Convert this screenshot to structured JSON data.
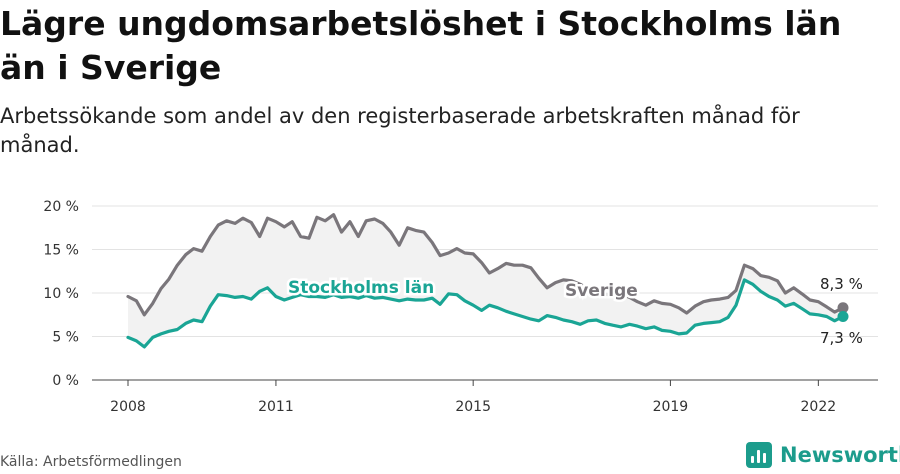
{
  "title": "Lägre ungdomsarbetslöshet i Stockholms län än i Sverige",
  "subtitle": "Arbetssökande som andel av den registerbaserade arbetskraften månad för månad.",
  "source": "Källa: Arbetsförmedlingen",
  "brand": "Newsworthy",
  "colors": {
    "sverige": "#7a767b",
    "stockholm": "#1aa595",
    "band": "#f2f2f2",
    "grid": "#e3e3e3",
    "brand": "#1c9c8c"
  },
  "chart_data": {
    "type": "line",
    "title": "Lägre ungdomsarbetslöshet i Stockholms län än i Sverige",
    "xlabel": "",
    "ylabel": "",
    "xlim": [
      2008,
      2022.5
    ],
    "ylim": [
      0,
      20
    ],
    "y_ticks": [
      0,
      5,
      10,
      15,
      20
    ],
    "y_tick_labels": [
      "0 %",
      "5 %",
      "10 %",
      "15 %",
      "20 %"
    ],
    "x_ticks": [
      2008,
      2011,
      2015,
      2019,
      2022
    ],
    "x_tick_labels": [
      "2008",
      "2011",
      "2015",
      "2019",
      "2022"
    ],
    "series": [
      {
        "name": "Sverige",
        "end_label": "8,3 %",
        "points": [
          [
            2008,
            9.6
          ],
          [
            2008.17,
            9.1
          ],
          [
            2008.33,
            7.5
          ],
          [
            2008.5,
            8.8
          ],
          [
            2008.67,
            10.5
          ],
          [
            2008.83,
            11.6
          ],
          [
            2009,
            13.2
          ],
          [
            2009.17,
            14.4
          ],
          [
            2009.33,
            15.1
          ],
          [
            2009.5,
            14.8
          ],
          [
            2009.67,
            16.5
          ],
          [
            2009.83,
            17.8
          ],
          [
            2010,
            18.3
          ],
          [
            2010.17,
            18.0
          ],
          [
            2010.33,
            18.6
          ],
          [
            2010.5,
            18.1
          ],
          [
            2010.67,
            16.5
          ],
          [
            2010.83,
            18.6
          ],
          [
            2011,
            18.2
          ],
          [
            2011.17,
            17.6
          ],
          [
            2011.33,
            18.2
          ],
          [
            2011.5,
            16.5
          ],
          [
            2011.67,
            16.3
          ],
          [
            2011.83,
            18.7
          ],
          [
            2012,
            18.3
          ],
          [
            2012.17,
            19.0
          ],
          [
            2012.33,
            17.0
          ],
          [
            2012.5,
            18.2
          ],
          [
            2012.67,
            16.5
          ],
          [
            2012.83,
            18.3
          ],
          [
            2013,
            18.5
          ],
          [
            2013.17,
            18.0
          ],
          [
            2013.33,
            17.0
          ],
          [
            2013.5,
            15.5
          ],
          [
            2013.67,
            17.5
          ],
          [
            2013.83,
            17.2
          ],
          [
            2014,
            17.0
          ],
          [
            2014.17,
            15.8
          ],
          [
            2014.33,
            14.3
          ],
          [
            2014.5,
            14.6
          ],
          [
            2014.67,
            15.1
          ],
          [
            2014.83,
            14.6
          ],
          [
            2015,
            14.5
          ],
          [
            2015.17,
            13.5
          ],
          [
            2015.33,
            12.3
          ],
          [
            2015.5,
            12.8
          ],
          [
            2015.67,
            13.4
          ],
          [
            2015.83,
            13.2
          ],
          [
            2016,
            13.2
          ],
          [
            2016.17,
            12.9
          ],
          [
            2016.33,
            11.7
          ],
          [
            2016.5,
            10.6
          ],
          [
            2016.67,
            11.2
          ],
          [
            2016.83,
            11.5
          ],
          [
            2017,
            11.4
          ],
          [
            2017.17,
            11.0
          ],
          [
            2017.33,
            10.5
          ],
          [
            2017.5,
            9.8
          ],
          [
            2017.67,
            9.9
          ],
          [
            2017.83,
            9.7
          ],
          [
            2018,
            9.9
          ],
          [
            2018.17,
            9.5
          ],
          [
            2018.33,
            9.0
          ],
          [
            2018.5,
            8.6
          ],
          [
            2018.67,
            9.1
          ],
          [
            2018.83,
            8.8
          ],
          [
            2019,
            8.7
          ],
          [
            2019.17,
            8.3
          ],
          [
            2019.33,
            7.7
          ],
          [
            2019.5,
            8.5
          ],
          [
            2019.67,
            9.0
          ],
          [
            2019.83,
            9.2
          ],
          [
            2020,
            9.3
          ],
          [
            2020.17,
            9.5
          ],
          [
            2020.33,
            10.3
          ],
          [
            2020.5,
            13.2
          ],
          [
            2020.67,
            12.8
          ],
          [
            2020.83,
            12.0
          ],
          [
            2021,
            11.8
          ],
          [
            2021.17,
            11.4
          ],
          [
            2021.33,
            10.0
          ],
          [
            2021.5,
            10.6
          ],
          [
            2021.67,
            9.9
          ],
          [
            2021.83,
            9.2
          ],
          [
            2022,
            9.0
          ],
          [
            2022.17,
            8.4
          ],
          [
            2022.33,
            7.8
          ],
          [
            2022.5,
            8.3
          ]
        ]
      },
      {
        "name": "Stockholms län",
        "end_label": "7,3 %",
        "points": [
          [
            2008,
            4.9
          ],
          [
            2008.17,
            4.5
          ],
          [
            2008.33,
            3.8
          ],
          [
            2008.5,
            4.9
          ],
          [
            2008.67,
            5.3
          ],
          [
            2008.83,
            5.6
          ],
          [
            2009,
            5.8
          ],
          [
            2009.17,
            6.5
          ],
          [
            2009.33,
            6.9
          ],
          [
            2009.5,
            6.7
          ],
          [
            2009.67,
            8.5
          ],
          [
            2009.83,
            9.8
          ],
          [
            2010,
            9.7
          ],
          [
            2010.17,
            9.5
          ],
          [
            2010.33,
            9.6
          ],
          [
            2010.5,
            9.3
          ],
          [
            2010.67,
            10.2
          ],
          [
            2010.83,
            10.6
          ],
          [
            2011,
            9.6
          ],
          [
            2011.17,
            9.2
          ],
          [
            2011.33,
            9.5
          ],
          [
            2011.5,
            9.8
          ],
          [
            2011.67,
            9.6
          ],
          [
            2011.83,
            9.6
          ],
          [
            2012,
            9.5
          ],
          [
            2012.17,
            9.8
          ],
          [
            2012.33,
            9.5
          ],
          [
            2012.5,
            9.6
          ],
          [
            2012.67,
            9.4
          ],
          [
            2012.83,
            9.7
          ],
          [
            2013,
            9.4
          ],
          [
            2013.17,
            9.5
          ],
          [
            2013.33,
            9.3
          ],
          [
            2013.5,
            9.1
          ],
          [
            2013.67,
            9.3
          ],
          [
            2013.83,
            9.2
          ],
          [
            2014,
            9.2
          ],
          [
            2014.17,
            9.4
          ],
          [
            2014.33,
            8.7
          ],
          [
            2014.5,
            9.9
          ],
          [
            2014.67,
            9.8
          ],
          [
            2014.83,
            9.1
          ],
          [
            2015,
            8.6
          ],
          [
            2015.17,
            8.0
          ],
          [
            2015.33,
            8.6
          ],
          [
            2015.5,
            8.3
          ],
          [
            2015.67,
            7.9
          ],
          [
            2015.83,
            7.6
          ],
          [
            2016,
            7.3
          ],
          [
            2016.17,
            7.0
          ],
          [
            2016.33,
            6.8
          ],
          [
            2016.5,
            7.4
          ],
          [
            2016.67,
            7.2
          ],
          [
            2016.83,
            6.9
          ],
          [
            2017,
            6.7
          ],
          [
            2017.17,
            6.4
          ],
          [
            2017.33,
            6.8
          ],
          [
            2017.5,
            6.9
          ],
          [
            2017.67,
            6.5
          ],
          [
            2017.83,
            6.3
          ],
          [
            2018,
            6.1
          ],
          [
            2018.17,
            6.4
          ],
          [
            2018.33,
            6.2
          ],
          [
            2018.5,
            5.9
          ],
          [
            2018.67,
            6.1
          ],
          [
            2018.83,
            5.7
          ],
          [
            2019,
            5.6
          ],
          [
            2019.17,
            5.3
          ],
          [
            2019.33,
            5.4
          ],
          [
            2019.5,
            6.3
          ],
          [
            2019.67,
            6.5
          ],
          [
            2019.83,
            6.6
          ],
          [
            2020,
            6.7
          ],
          [
            2020.17,
            7.2
          ],
          [
            2020.33,
            8.6
          ],
          [
            2020.5,
            11.5
          ],
          [
            2020.67,
            11.0
          ],
          [
            2020.83,
            10.2
          ],
          [
            2021,
            9.6
          ],
          [
            2021.17,
            9.2
          ],
          [
            2021.33,
            8.5
          ],
          [
            2021.5,
            8.8
          ],
          [
            2021.67,
            8.2
          ],
          [
            2021.83,
            7.6
          ],
          [
            2022,
            7.5
          ],
          [
            2022.17,
            7.3
          ],
          [
            2022.33,
            6.8
          ],
          [
            2022.5,
            7.3
          ]
        ]
      }
    ],
    "legend": "inline labels on lines",
    "annotations": [
      "Stockholms län",
      "Sverige",
      "8,3 %",
      "7,3 %"
    ]
  }
}
